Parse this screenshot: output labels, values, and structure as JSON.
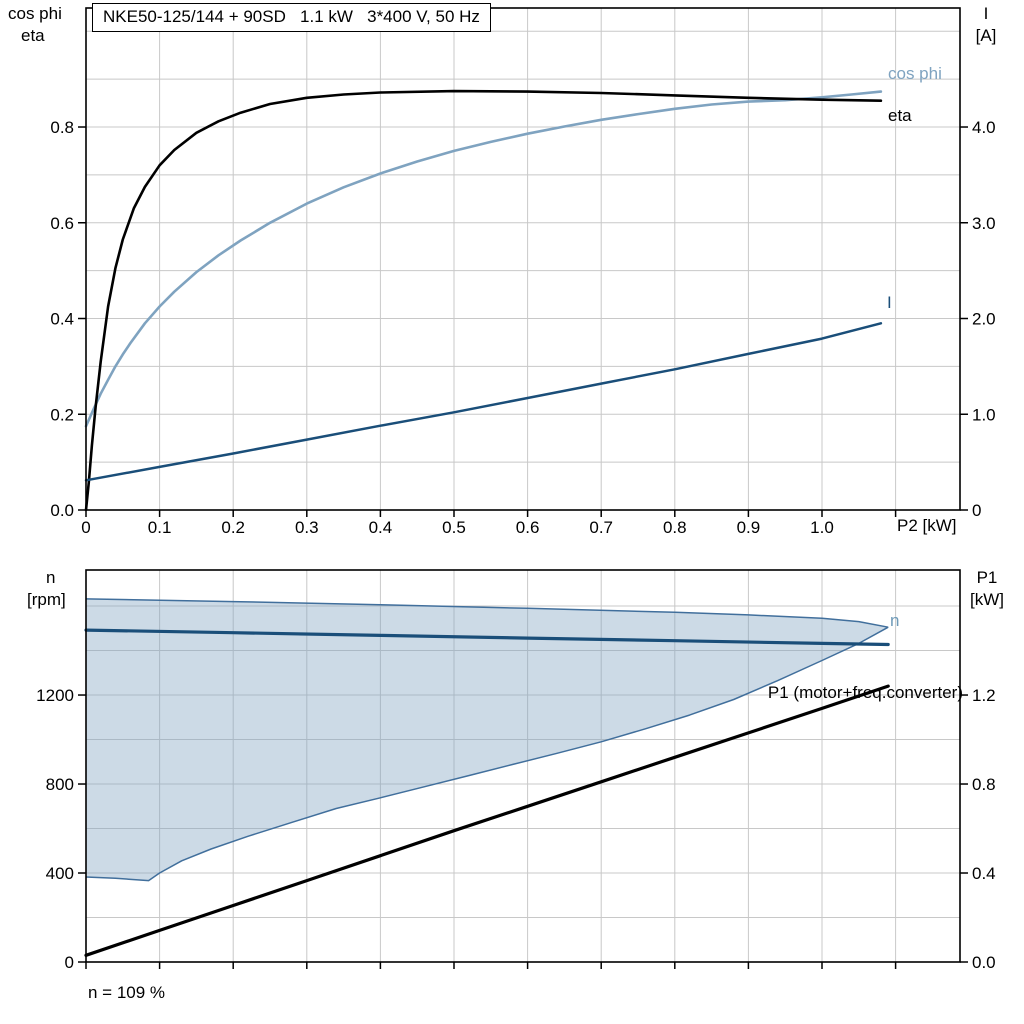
{
  "chart_data": [
    {
      "id": "top",
      "type": "line",
      "title": "NKE50-125/144 + 90SD   1.1 kW   3*400 V, 50 Hz",
      "axes": {
        "x": {
          "label": "P2 [kW]",
          "min": 0,
          "max": 1.1875,
          "ticks": [
            0,
            0.1,
            0.2,
            0.3,
            0.4,
            0.5,
            0.6,
            0.7,
            0.8,
            0.9,
            1.0
          ],
          "tick_labels": [
            "0",
            "0.1",
            "0.2",
            "0.3",
            "0.4",
            "0.5",
            "0.6",
            "0.7",
            "0.8",
            "0.9",
            "1.0"
          ],
          "tick_marks": [
            0,
            0.1,
            0.2,
            0.3,
            0.4,
            0.5,
            0.6,
            0.7,
            0.8,
            0.9,
            1.0,
            1.1
          ],
          "grid": [
            0.1,
            0.2,
            0.3,
            0.4,
            0.5,
            0.6,
            0.7,
            0.8,
            0.9,
            1.0,
            1.1
          ]
        },
        "y_left": {
          "label_lines": [
            "cos phi",
            "eta"
          ],
          "min": 0,
          "max": 1.0486,
          "ticks": [
            0,
            0.2,
            0.4,
            0.6,
            0.8
          ],
          "tick_labels": [
            "0.0",
            "0.2",
            "0.4",
            "0.6",
            "0.8"
          ],
          "grid": [
            0.1,
            0.2,
            0.3,
            0.4,
            0.5,
            0.6,
            0.7,
            0.8,
            0.9,
            1.0
          ]
        },
        "y_right": {
          "label_lines": [
            "I",
            "[A]"
          ],
          "min": 0,
          "max": 5.243,
          "ticks": [
            0,
            1,
            2,
            3,
            4
          ],
          "tick_labels": [
            "0",
            "1.0",
            "2.0",
            "3.0",
            "4.0"
          ]
        }
      },
      "series": [
        {
          "name": "cos_phi",
          "label": "cos phi",
          "color": "#7fa3c0",
          "width": 2.6,
          "axis": "left",
          "points": [
            [
              0,
              0.175
            ],
            [
              0.01,
              0.21
            ],
            [
              0.02,
              0.243
            ],
            [
              0.03,
              0.272
            ],
            [
              0.04,
              0.3
            ],
            [
              0.05,
              0.325
            ],
            [
              0.06,
              0.348
            ],
            [
              0.08,
              0.39
            ],
            [
              0.1,
              0.425
            ],
            [
              0.12,
              0.456
            ],
            [
              0.15,
              0.497
            ],
            [
              0.18,
              0.532
            ],
            [
              0.21,
              0.563
            ],
            [
              0.25,
              0.6
            ],
            [
              0.3,
              0.64
            ],
            [
              0.35,
              0.674
            ],
            [
              0.4,
              0.703
            ],
            [
              0.45,
              0.728
            ],
            [
              0.5,
              0.75
            ],
            [
              0.55,
              0.769
            ],
            [
              0.6,
              0.786
            ],
            [
              0.65,
              0.801
            ],
            [
              0.7,
              0.815
            ],
            [
              0.75,
              0.827
            ],
            [
              0.8,
              0.838
            ],
            [
              0.85,
              0.847
            ],
            [
              0.9,
              0.853
            ],
            [
              0.95,
              0.856
            ],
            [
              1.0,
              0.862
            ],
            [
              1.04,
              0.868
            ],
            [
              1.08,
              0.874
            ]
          ]
        },
        {
          "name": "eta",
          "label": "eta",
          "color": "#000000",
          "width": 2.6,
          "axis": "left",
          "points": [
            [
              0,
              0
            ],
            [
              0.004,
              0.06
            ],
            [
              0.008,
              0.135
            ],
            [
              0.013,
              0.215
            ],
            [
              0.02,
              0.31
            ],
            [
              0.03,
              0.425
            ],
            [
              0.04,
              0.505
            ],
            [
              0.05,
              0.565
            ],
            [
              0.065,
              0.63
            ],
            [
              0.08,
              0.675
            ],
            [
              0.1,
              0.72
            ],
            [
              0.12,
              0.752
            ],
            [
              0.15,
              0.788
            ],
            [
              0.18,
              0.812
            ],
            [
              0.21,
              0.83
            ],
            [
              0.25,
              0.848
            ],
            [
              0.3,
              0.861
            ],
            [
              0.35,
              0.868
            ],
            [
              0.4,
              0.872
            ],
            [
              0.5,
              0.875
            ],
            [
              0.6,
              0.874
            ],
            [
              0.7,
              0.871
            ],
            [
              0.8,
              0.866
            ],
            [
              0.9,
              0.861
            ],
            [
              1.0,
              0.857
            ],
            [
              1.08,
              0.855
            ]
          ]
        },
        {
          "name": "current",
          "label": "I",
          "color": "#1a4e79",
          "width": 2.5,
          "axis": "right",
          "points": [
            [
              0,
              0.31
            ],
            [
              0.1,
              0.45
            ],
            [
              0.2,
              0.59
            ],
            [
              0.3,
              0.735
            ],
            [
              0.4,
              0.88
            ],
            [
              0.5,
              1.02
            ],
            [
              0.6,
              1.17
            ],
            [
              0.7,
              1.32
            ],
            [
              0.8,
              1.47
            ],
            [
              0.9,
              1.63
            ],
            [
              1.0,
              1.79
            ],
            [
              1.08,
              1.95
            ]
          ]
        }
      ]
    },
    {
      "id": "bottom",
      "type": "line",
      "footnote": "n = 109 %",
      "axes": {
        "x": {
          "min": 0,
          "max": 1.1875,
          "ticks": [
            0,
            0.1,
            0.2,
            0.3,
            0.4,
            0.5,
            0.6,
            0.7,
            0.8,
            0.9,
            1.0
          ],
          "tick_marks": [
            0,
            0.1,
            0.2,
            0.3,
            0.4,
            0.5,
            0.6,
            0.7,
            0.8,
            0.9,
            1.0,
            1.1
          ],
          "grid": [
            0.1,
            0.2,
            0.3,
            0.4,
            0.5,
            0.6,
            0.7,
            0.8,
            0.9,
            1.0,
            1.1
          ]
        },
        "y_left": {
          "label_lines": [
            "n",
            "[rpm]"
          ],
          "min": 0,
          "max": 1762,
          "ticks": [
            0,
            400,
            800,
            1200
          ],
          "tick_labels": [
            "0",
            "400",
            "800",
            "1200"
          ],
          "grid": [
            200,
            400,
            600,
            800,
            1000,
            1200,
            1400,
            1600
          ]
        },
        "y_right": {
          "label_lines": [
            "P1",
            "[kW]"
          ],
          "min": 0,
          "max": 1.762,
          "ticks": [
            0,
            0.4,
            0.8,
            1.2
          ],
          "tick_labels": [
            "0.0",
            "0.4",
            "0.8",
            "1.2"
          ]
        }
      },
      "band": {
        "name": "speed-control-range",
        "fill": "rgba(127,163,192,0.40)",
        "edge_color": "#416f9c",
        "upper": [
          [
            0,
            1632
          ],
          [
            0.2,
            1620
          ],
          [
            0.4,
            1606
          ],
          [
            0.6,
            1590
          ],
          [
            0.8,
            1572
          ],
          [
            0.9,
            1560
          ],
          [
            1.0,
            1545
          ],
          [
            1.05,
            1530
          ],
          [
            1.09,
            1505
          ]
        ],
        "lower": [
          [
            0,
            382
          ],
          [
            0.04,
            376
          ],
          [
            0.085,
            366
          ],
          [
            0.1,
            400
          ],
          [
            0.13,
            455
          ],
          [
            0.17,
            508
          ],
          [
            0.22,
            565
          ],
          [
            0.28,
            628
          ],
          [
            0.34,
            690
          ],
          [
            0.4,
            738
          ],
          [
            0.46,
            788
          ],
          [
            0.52,
            838
          ],
          [
            0.58,
            888
          ],
          [
            0.64,
            938
          ],
          [
            0.7,
            990
          ],
          [
            0.76,
            1048
          ],
          [
            0.82,
            1110
          ],
          [
            0.88,
            1180
          ],
          [
            0.94,
            1265
          ],
          [
            1.0,
            1355
          ],
          [
            1.05,
            1432
          ],
          [
            1.09,
            1505
          ]
        ]
      },
      "series": [
        {
          "name": "n",
          "label": "n",
          "color": "#1a4e79",
          "label_color": "#6e9ab8",
          "width": 3.2,
          "axis": "left",
          "points": [
            [
              0,
              1492
            ],
            [
              0.2,
              1480
            ],
            [
              0.4,
              1468
            ],
            [
              0.6,
              1456
            ],
            [
              0.8,
              1444
            ],
            [
              1.0,
              1432
            ],
            [
              1.09,
              1427
            ]
          ]
        },
        {
          "name": "p1",
          "label": "P1 (motor+freq.converter)",
          "color": "#000000",
          "width": 3.2,
          "axis": "right",
          "points": [
            [
              0,
              0.03
            ],
            [
              0.1,
              0.142
            ],
            [
              0.2,
              0.254
            ],
            [
              0.3,
              0.366
            ],
            [
              0.4,
              0.478
            ],
            [
              0.5,
              0.59
            ],
            [
              0.6,
              0.7
            ],
            [
              0.7,
              0.81
            ],
            [
              0.8,
              0.92
            ],
            [
              0.9,
              1.03
            ],
            [
              1.0,
              1.14
            ],
            [
              1.09,
              1.24
            ]
          ]
        }
      ]
    }
  ]
}
